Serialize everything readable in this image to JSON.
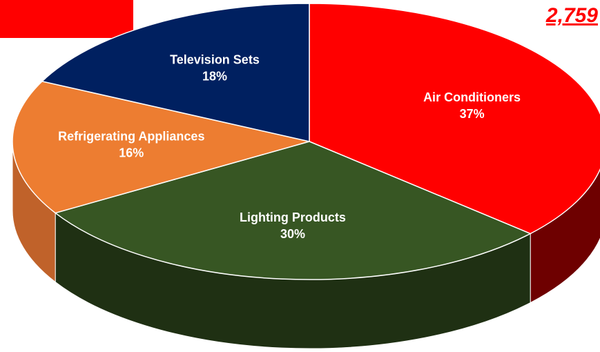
{
  "chart_data": {
    "type": "pie",
    "annotation": "2,759",
    "categories": [
      "Air Conditioners",
      "Lighting Products",
      "Refrigerating Appliances",
      "Television Sets"
    ],
    "values": [
      37,
      30,
      16,
      18
    ],
    "value_labels": [
      "37%",
      "30%",
      "16%",
      "18%"
    ],
    "colors": [
      "#ff0000",
      "#375623",
      "#ed7d31",
      "#002060"
    ],
    "side_colors": [
      "#6e0000",
      "#1f3013",
      "#c0622a",
      "#001038"
    ]
  }
}
